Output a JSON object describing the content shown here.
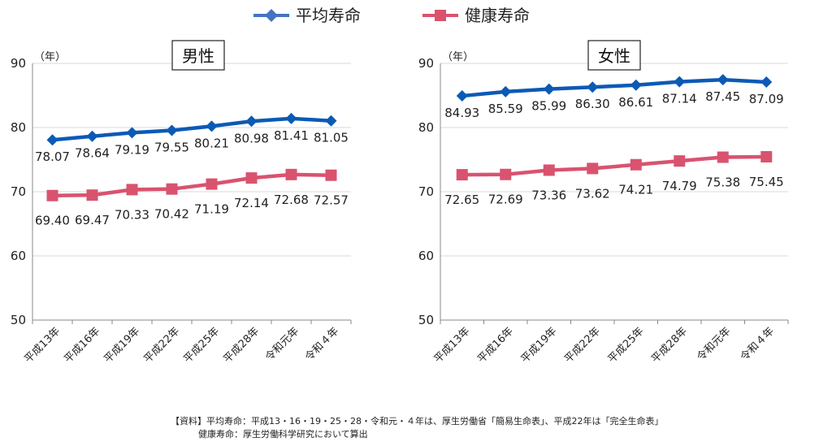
{
  "legend": [
    {
      "name": "平均寿命",
      "color": "#4472C4"
    },
    {
      "name": "健康寿命",
      "color": "#D9536F"
    }
  ],
  "chart_data": [
    {
      "type": "line",
      "title": "男性",
      "unit": "（年）",
      "categories": [
        "平成13年",
        "平成16年",
        "平成19年",
        "平成22年",
        "平成25年",
        "平成28年",
        "令和元年",
        "令和４年"
      ],
      "ylim": [
        50,
        90
      ],
      "yticks": [
        50,
        60,
        70,
        80,
        90
      ],
      "grid": true,
      "series": [
        {
          "name": "平均寿命",
          "color": "#0B5AB5",
          "marker": "diamond",
          "values": [
            78.07,
            78.64,
            79.19,
            79.55,
            80.21,
            80.98,
            81.41,
            81.05
          ],
          "labels": [
            "78.07",
            "78.64",
            "79.19",
            "79.55",
            "80.21",
            "80.98",
            "81.41",
            "81.05"
          ]
        },
        {
          "name": "健康寿命",
          "color": "#D9536F",
          "marker": "square",
          "values": [
            69.4,
            69.47,
            70.33,
            70.42,
            71.19,
            72.14,
            72.68,
            72.57
          ],
          "labels": [
            "69.40",
            "69.47",
            "70.33",
            "70.42",
            "71.19",
            "72.14",
            "72.68",
            "72.57"
          ]
        }
      ]
    },
    {
      "type": "line",
      "title": "女性",
      "unit": "（年）",
      "categories": [
        "平成13年",
        "平成16年",
        "平成19年",
        "平成22年",
        "平成25年",
        "平成28年",
        "令和元年",
        "令和４年"
      ],
      "ylim": [
        50,
        90
      ],
      "yticks": [
        50,
        60,
        70,
        80,
        90
      ],
      "grid": true,
      "series": [
        {
          "name": "平均寿命",
          "color": "#0B5AB5",
          "marker": "diamond",
          "values": [
            84.93,
            85.59,
            85.99,
            86.3,
            86.61,
            87.14,
            87.45,
            87.09
          ],
          "labels": [
            "84.93",
            "85.59",
            "85.99",
            "86.30",
            "86.61",
            "87.14",
            "87.45",
            "87.09"
          ]
        },
        {
          "name": "健康寿命",
          "color": "#D9536F",
          "marker": "square",
          "values": [
            72.65,
            72.69,
            73.36,
            73.62,
            74.21,
            74.79,
            75.38,
            75.45
          ],
          "labels": [
            "72.65",
            "72.69",
            "73.36",
            "73.62",
            "74.21",
            "74.79",
            "75.38",
            "75.45"
          ]
        }
      ]
    }
  ],
  "source": {
    "line1": "【資料】平均寿命：平成13・16・19・25・28・令和元・４年は、厚生労働省「簡易生命表」、平成22年は「完全生命表」",
    "line2": "健康寿命：厚生労働科学研究において算出"
  }
}
